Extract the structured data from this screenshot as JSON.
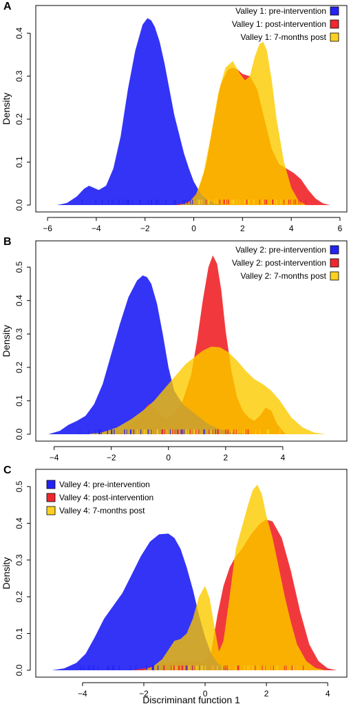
{
  "colors": {
    "pre": "#2323f5",
    "post": "#f0282d",
    "seven": "#fdd11e",
    "overlap": "#fab000",
    "axis": "#000000"
  },
  "xlabel": "Discriminant function 1",
  "chart_data": [
    {
      "panel_label": "A",
      "type": "area",
      "ylabel": "Density",
      "xlim": [
        -6.2,
        6.0
      ],
      "ylim": [
        0,
        0.45
      ],
      "xticks": [
        -6,
        -4,
        -2,
        0,
        2,
        4,
        6
      ],
      "xtick_labels": [
        "−6",
        "−4",
        "−2",
        "0",
        "2",
        "4",
        "6"
      ],
      "yticks": [
        0,
        0.1,
        0.2,
        0.3,
        0.4
      ],
      "ytick_labels": [
        "0.0",
        "0.1",
        "0.2",
        "0.3",
        "0.4"
      ],
      "legend_position": "top-right",
      "series": [
        {
          "name": "Valley 1: pre-intervention",
          "key": "pre",
          "x": [
            -5.6,
            -5.2,
            -4.8,
            -4.5,
            -4.3,
            -4.1,
            -3.9,
            -3.6,
            -3.3,
            -3.0,
            -2.7,
            -2.4,
            -2.1,
            -1.9,
            -1.75,
            -1.6,
            -1.4,
            -1.2,
            -1.0,
            -0.8,
            -0.6,
            -0.4,
            -0.2,
            0.0,
            0.3,
            0.6,
            0.9,
            1.2
          ],
          "y": [
            0.0,
            0.005,
            0.02,
            0.038,
            0.045,
            0.04,
            0.035,
            0.045,
            0.085,
            0.16,
            0.27,
            0.36,
            0.42,
            0.435,
            0.43,
            0.415,
            0.38,
            0.33,
            0.27,
            0.21,
            0.165,
            0.12,
            0.085,
            0.055,
            0.025,
            0.01,
            0.003,
            0.0
          ]
        },
        {
          "name": "Valley 1: post-intervention",
          "key": "post",
          "x": [
            -0.8,
            -0.4,
            -0.1,
            0.2,
            0.5,
            0.8,
            1.1,
            1.4,
            1.6,
            1.8,
            2.0,
            2.3,
            2.6,
            2.9,
            3.2,
            3.5,
            3.8,
            4.1,
            4.4,
            4.7,
            5.0,
            5.3,
            5.6
          ],
          "y": [
            0.0,
            0.004,
            0.012,
            0.035,
            0.09,
            0.19,
            0.28,
            0.315,
            0.32,
            0.315,
            0.305,
            0.3,
            0.27,
            0.2,
            0.13,
            0.095,
            0.085,
            0.075,
            0.06,
            0.035,
            0.015,
            0.004,
            0.0
          ]
        },
        {
          "name": "Valley 1: 7-months post",
          "key": "seven",
          "x": [
            -0.6,
            -0.2,
            0.1,
            0.4,
            0.7,
            1.0,
            1.3,
            1.6,
            1.9,
            2.1,
            2.3,
            2.5,
            2.7,
            2.85,
            3.0,
            3.2,
            3.4,
            3.7,
            4.0,
            4.3,
            4.6
          ],
          "y": [
            0.0,
            0.006,
            0.025,
            0.075,
            0.16,
            0.26,
            0.32,
            0.335,
            0.305,
            0.29,
            0.3,
            0.345,
            0.375,
            0.38,
            0.36,
            0.29,
            0.2,
            0.1,
            0.04,
            0.01,
            0.0
          ]
        }
      ]
    },
    {
      "panel_label": "B",
      "type": "area",
      "ylabel": "Density",
      "xlim": [
        -4.4,
        6.0
      ],
      "ylim": [
        0,
        0.56
      ],
      "xticks": [
        -4,
        -2,
        0,
        2,
        4
      ],
      "xtick_labels": [
        "−4",
        "−2",
        "0",
        "2",
        "4"
      ],
      "yticks": [
        0,
        0.1,
        0.2,
        0.3,
        0.4,
        0.5
      ],
      "ytick_labels": [
        "0.0",
        "0.1",
        "0.2",
        "0.3",
        "0.4",
        "0.5"
      ],
      "legend_position": "top-right",
      "series": [
        {
          "name": "Valley 2: pre-intervention",
          "key": "pre",
          "x": [
            -4.2,
            -3.8,
            -3.5,
            -3.2,
            -2.9,
            -2.6,
            -2.3,
            -2.0,
            -1.7,
            -1.4,
            -1.1,
            -0.9,
            -0.75,
            -0.6,
            -0.4,
            -0.2,
            0.0,
            0.2,
            0.5,
            0.8,
            1.1,
            1.4,
            1.8,
            2.2,
            2.6,
            3.0
          ],
          "y": [
            0.0,
            0.01,
            0.028,
            0.04,
            0.055,
            0.09,
            0.15,
            0.24,
            0.33,
            0.41,
            0.46,
            0.475,
            0.47,
            0.45,
            0.39,
            0.3,
            0.2,
            0.13,
            0.09,
            0.07,
            0.05,
            0.03,
            0.015,
            0.006,
            0.002,
            0.0
          ]
        },
        {
          "name": "Valley 2: post-intervention",
          "key": "post",
          "x": [
            -1.8,
            -1.4,
            -1.0,
            -0.7,
            -0.4,
            -0.1,
            0.2,
            0.5,
            0.8,
            1.0,
            1.2,
            1.4,
            1.55,
            1.7,
            1.85,
            2.0,
            2.2,
            2.4,
            2.6,
            2.8,
            3.0,
            3.2,
            3.4,
            3.6,
            3.8,
            4.1
          ],
          "y": [
            0.0,
            0.02,
            0.055,
            0.09,
            0.07,
            0.045,
            0.06,
            0.1,
            0.18,
            0.28,
            0.4,
            0.5,
            0.535,
            0.51,
            0.43,
            0.31,
            0.19,
            0.11,
            0.07,
            0.05,
            0.04,
            0.055,
            0.08,
            0.07,
            0.03,
            0.0
          ]
        },
        {
          "name": "Valley 2: 7-months post",
          "key": "seven",
          "x": [
            -2.8,
            -2.3,
            -1.8,
            -1.3,
            -0.9,
            -0.5,
            -0.1,
            0.3,
            0.6,
            0.9,
            1.2,
            1.5,
            1.8,
            2.1,
            2.4,
            2.7,
            3.0,
            3.3,
            3.6,
            3.9,
            4.3,
            4.7,
            5.1,
            5.5
          ],
          "y": [
            0.0,
            0.006,
            0.02,
            0.045,
            0.07,
            0.1,
            0.14,
            0.18,
            0.21,
            0.23,
            0.25,
            0.262,
            0.26,
            0.245,
            0.22,
            0.19,
            0.165,
            0.15,
            0.13,
            0.1,
            0.05,
            0.02,
            0.005,
            0.0
          ]
        }
      ]
    },
    {
      "panel_label": "C",
      "type": "area",
      "ylabel": "Density",
      "xlim": [
        -5.3,
        4.4
      ],
      "ylim": [
        0,
        0.53
      ],
      "xticks": [
        -4,
        -2,
        0,
        2,
        4
      ],
      "xtick_labels": [
        "−4",
        "−2",
        "0",
        "2",
        "4"
      ],
      "yticks": [
        0,
        0.1,
        0.2,
        0.3,
        0.4,
        0.5
      ],
      "ytick_labels": [
        "0.0",
        "0.1",
        "0.2",
        "0.3",
        "0.4",
        "0.5"
      ],
      "legend_position": "top-left",
      "series": [
        {
          "name": "Valley 4: pre-intervention",
          "key": "pre",
          "x": [
            -5.0,
            -4.6,
            -4.2,
            -3.9,
            -3.6,
            -3.3,
            -3.0,
            -2.7,
            -2.4,
            -2.1,
            -1.8,
            -1.5,
            -1.2,
            -1.0,
            -0.8,
            -0.6,
            -0.4,
            -0.2,
            0.0,
            0.2,
            0.4,
            0.6,
            0.8,
            1.0
          ],
          "y": [
            0.0,
            0.005,
            0.02,
            0.045,
            0.09,
            0.14,
            0.175,
            0.21,
            0.26,
            0.31,
            0.35,
            0.37,
            0.372,
            0.36,
            0.33,
            0.28,
            0.22,
            0.15,
            0.09,
            0.045,
            0.02,
            0.008,
            0.002,
            0.0
          ]
        },
        {
          "name": "Valley 4: post-intervention",
          "key": "post",
          "x": [
            -2.4,
            -2.0,
            -1.6,
            -1.2,
            -0.8,
            -0.4,
            -0.1,
            0.2,
            0.4,
            0.6,
            0.8,
            1.0,
            1.2,
            1.5,
            1.8,
            2.0,
            2.2,
            2.5,
            2.8,
            3.1,
            3.4,
            3.7,
            4.0,
            4.3
          ],
          "y": [
            0.0,
            0.005,
            0.012,
            0.02,
            0.025,
            0.025,
            0.02,
            0.05,
            0.15,
            0.23,
            0.28,
            0.31,
            0.33,
            0.37,
            0.4,
            0.41,
            0.405,
            0.36,
            0.27,
            0.16,
            0.07,
            0.025,
            0.005,
            0.0
          ]
        },
        {
          "name": "Valley 4: 7-months post",
          "key": "seven",
          "x": [
            -2.0,
            -1.7,
            -1.4,
            -1.2,
            -1.0,
            -0.8,
            -0.6,
            -0.4,
            -0.2,
            0.0,
            0.15,
            0.3,
            0.45,
            0.6,
            0.8,
            1.0,
            1.2,
            1.4,
            1.55,
            1.7,
            1.85,
            2.0,
            2.2,
            2.4,
            2.6,
            2.8,
            3.0,
            3.3,
            3.6,
            3.9
          ],
          "y": [
            0.0,
            0.01,
            0.03,
            0.055,
            0.08,
            0.085,
            0.1,
            0.14,
            0.2,
            0.23,
            0.195,
            0.12,
            0.05,
            0.08,
            0.2,
            0.33,
            0.39,
            0.45,
            0.49,
            0.505,
            0.48,
            0.42,
            0.36,
            0.28,
            0.2,
            0.13,
            0.07,
            0.025,
            0.006,
            0.0
          ]
        }
      ]
    }
  ]
}
